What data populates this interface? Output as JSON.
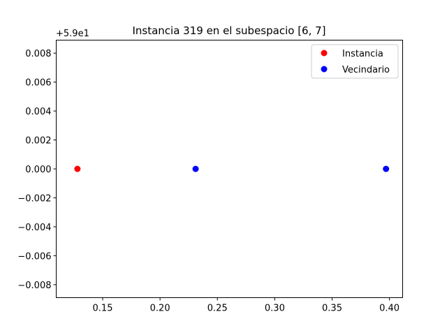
{
  "chart_data": {
    "type": "scatter",
    "title": "Instancia 319 en el subespacio [6, 7]",
    "xlabel": "",
    "ylabel": "",
    "y_offset_label": "+5.9e1",
    "xlim": [
      0.1095,
      0.4115
    ],
    "ylim": [
      -0.0089,
      0.0089
    ],
    "xticks": [
      0.15,
      0.2,
      0.25,
      0.3,
      0.35,
      0.4
    ],
    "xtick_labels": [
      "0.15",
      "0.20",
      "0.25",
      "0.30",
      "0.35",
      "0.40"
    ],
    "yticks": [
      -0.008,
      -0.006,
      -0.004,
      -0.002,
      0.0,
      0.002,
      0.004,
      0.006,
      0.008
    ],
    "ytick_labels": [
      "−0.008",
      "−0.006",
      "−0.004",
      "−0.002",
      "0.000",
      "0.002",
      "0.004",
      "0.006",
      "0.008"
    ],
    "grid": false,
    "legend_position": "top-right",
    "series": [
      {
        "name": "Instancia",
        "color": "#ff0000",
        "points": [
          {
            "x": 0.128,
            "y": 0.0
          }
        ]
      },
      {
        "name": "Vecindario",
        "color": "#0000ff",
        "points": [
          {
            "x": 0.231,
            "y": 0.0
          },
          {
            "x": 0.397,
            "y": 0.0
          }
        ]
      }
    ]
  }
}
